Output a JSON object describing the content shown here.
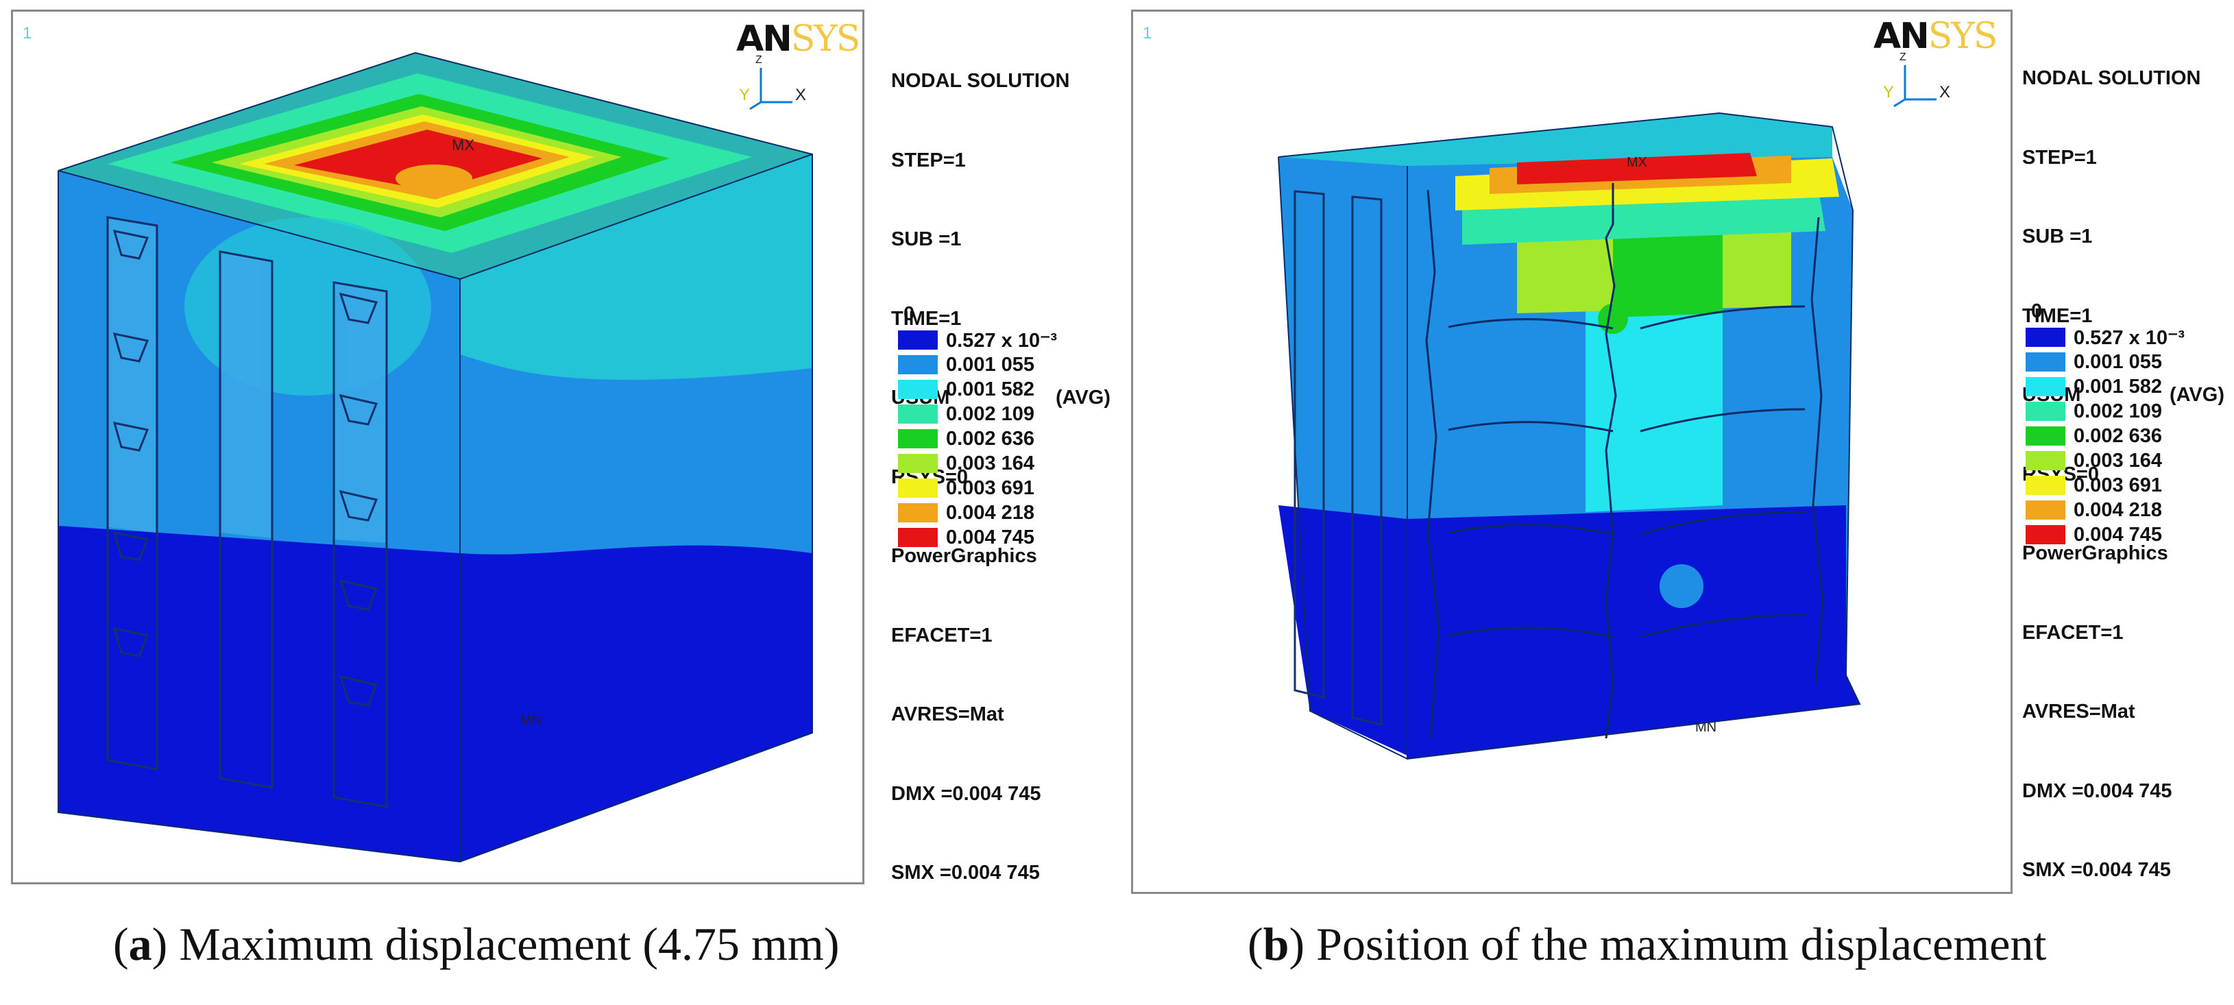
{
  "legend_colors": [
    "#0a14d6",
    "#1f8fe6",
    "#23e5f0",
    "#2ee6a8",
    "#19cf23",
    "#a4e82c",
    "#f2f21a",
    "#f0a51a",
    "#e61515"
  ],
  "panels": [
    {
      "window_number": "1",
      "logo_an": "AN",
      "logo_sys": "SYS",
      "axes": {
        "y": "Y",
        "z": "Z",
        "x": "X"
      },
      "info": {
        "title": "NODAL SOLUTION",
        "step": "STEP=1",
        "sub": "SUB =1",
        "time": "TIME=1",
        "usum": "USUM",
        "avg": "(AVG)",
        "rsys": "RSYS=0",
        "graphics": "PowerGraphics",
        "efacet": "EFACET=1",
        "avres": "AVRES=Mat",
        "dmx": "DMX =0.004 745",
        "smx": "SMX =0.004 745"
      },
      "legend_zero": "0",
      "legend_labels": [
        "0.527 x 10⁻³",
        "0.001 055",
        "0.001 582",
        "0.002 109",
        "0.002 636",
        "0.003 164",
        "0.003 691",
        "0.004 218",
        "0.004 745"
      ],
      "mx_label": "MX",
      "mn_label": "MN"
    },
    {
      "window_number": "1",
      "logo_an": "AN",
      "logo_sys": "SYS",
      "axes": {
        "y": "Y",
        "z": "Z",
        "x": "X"
      },
      "info": {
        "title": "NODAL SOLUTION",
        "step": "STEP=1",
        "sub": "SUB =1",
        "time": "TIME=1",
        "usum": "USUM",
        "avg": "(AVG)",
        "rsys": "RSYS=0",
        "graphics": "PowerGraphics",
        "efacet": "EFACET=1",
        "avres": "AVRES=Mat",
        "dmx": "DMX =0.004 745",
        "smx": "SMX =0.004 745"
      },
      "legend_zero": "0",
      "legend_labels": [
        "0.527 x 10⁻³",
        "0.001 055",
        "0.001 582",
        "0.002 109",
        "0.002 636",
        "0.003 164",
        "0.003 691",
        "0.004 218",
        "0.004 745"
      ],
      "mx_label": "MX",
      "mn_label": "MN"
    }
  ],
  "captions": [
    {
      "letter": "a",
      "text": " Maximum displacement (4.75 mm)"
    },
    {
      "letter": "b",
      "text": " Position of the maximum displacement"
    }
  ]
}
